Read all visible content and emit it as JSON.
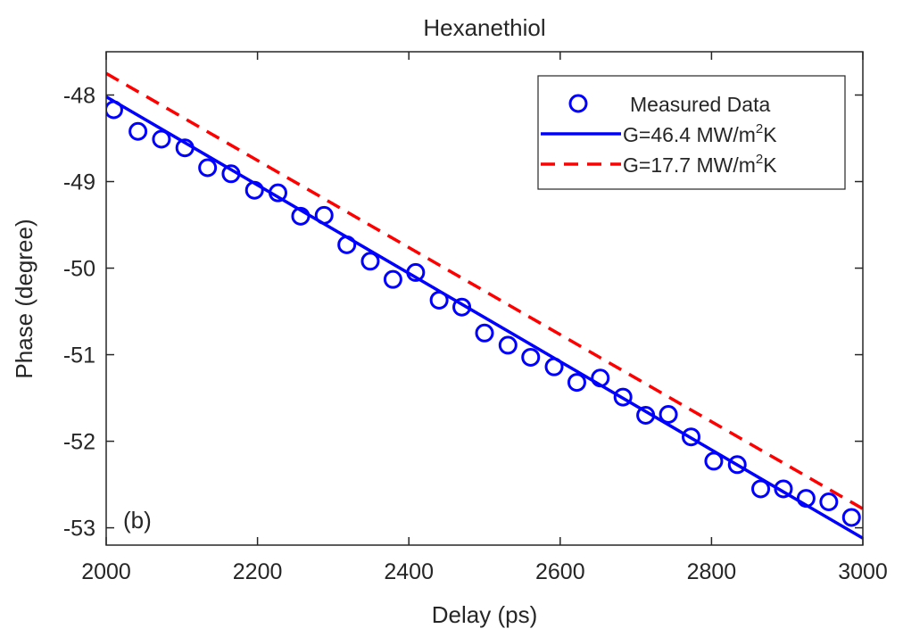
{
  "chart_data": {
    "type": "line",
    "title": "Hexanethiol",
    "xlabel": "Delay (ps)",
    "ylabel": "Phase (degree)",
    "panel_label": "(b)",
    "xlim": [
      2000,
      3000
    ],
    "ylim": [
      -53.2,
      -47.5
    ],
    "x_ticks": [
      2000,
      2200,
      2400,
      2600,
      2800,
      3000
    ],
    "x_tick_labels": [
      "2000",
      "2200",
      "2400",
      "2600",
      "2800",
      "3000"
    ],
    "y_ticks": [
      -48,
      -49,
      -50,
      -51,
      -52,
      -53
    ],
    "y_tick_labels": [
      "-48",
      "-49",
      "-50",
      "-51",
      "-52",
      "-53"
    ],
    "grid": false,
    "legend_position": "top-right",
    "series": [
      {
        "name": "Measured Data",
        "style": "markers",
        "marker": "circle",
        "color": "#0000ff",
        "x": [
          2010,
          2042,
          2073,
          2104,
          2134,
          2165,
          2196,
          2227,
          2257,
          2288,
          2318,
          2349,
          2379,
          2409,
          2440,
          2470,
          2500,
          2531,
          2561,
          2592,
          2622,
          2653,
          2683,
          2713,
          2743,
          2773,
          2803,
          2834,
          2865,
          2895,
          2925,
          2955,
          2985
        ],
        "y": [
          -48.17,
          -48.42,
          -48.51,
          -48.61,
          -48.84,
          -48.91,
          -49.1,
          -49.13,
          -49.4,
          -49.39,
          -49.73,
          -49.92,
          -50.13,
          -50.05,
          -50.37,
          -50.45,
          -50.75,
          -50.89,
          -51.03,
          -51.14,
          -51.32,
          -51.27,
          -51.49,
          -51.7,
          -51.69,
          -51.95,
          -52.23,
          -52.27,
          -52.55,
          -52.55,
          -52.66,
          -52.7,
          -52.88
        ]
      },
      {
        "name": "G=46.4 MW/m²K",
        "style": "solid",
        "color": "#0000ff",
        "x": [
          2000,
          3000
        ],
        "y": [
          -48.02,
          -53.12
        ]
      },
      {
        "name": "G=17.7 MW/m²K",
        "style": "dashed",
        "color": "#ff0000",
        "x": [
          2000,
          3000
        ],
        "y": [
          -47.75,
          -52.78
        ]
      }
    ],
    "legend": {
      "items": [
        {
          "prefix": "Measured Data",
          "sup": "",
          "suffix": ""
        },
        {
          "prefix": "G=46.4 MW/m",
          "sup": "2",
          "suffix": "K"
        },
        {
          "prefix": "G=17.7 MW/m",
          "sup": "2",
          "suffix": "K"
        }
      ]
    }
  }
}
